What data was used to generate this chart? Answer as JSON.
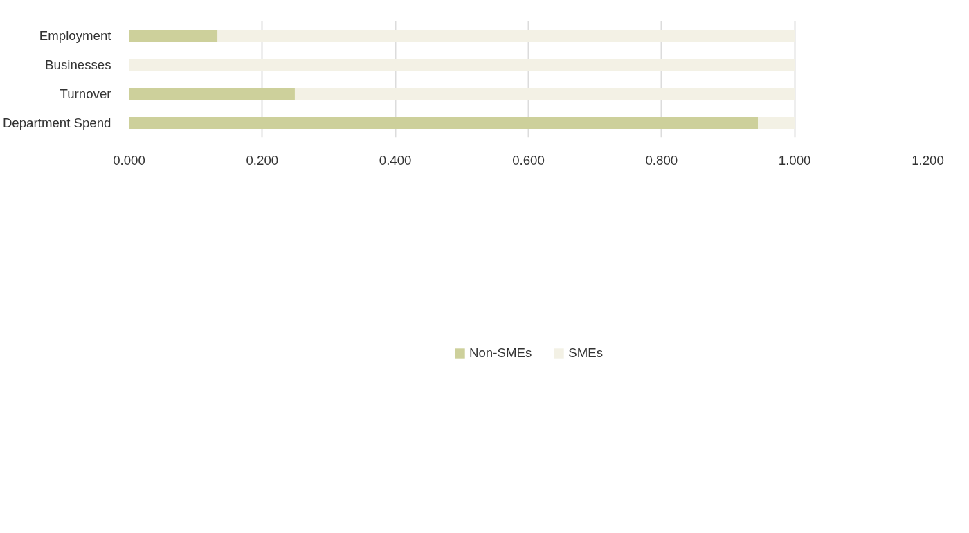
{
  "chart_data": {
    "type": "bar",
    "orientation": "horizontal",
    "stacked": true,
    "categories": [
      "Employment",
      "Businesses",
      "Turnover",
      "Department Spend"
    ],
    "series": [
      {
        "name": "Non-SMEs",
        "color": "#cdd09b",
        "values": [
          0.133,
          0.0,
          0.249,
          0.945
        ]
      },
      {
        "name": "SMEs",
        "color": "#f3f1e5",
        "values": [
          0.867,
          1.0,
          0.751,
          0.055
        ]
      }
    ],
    "xlim": [
      0,
      1.2
    ],
    "xticks": [
      {
        "value": 0,
        "label": "0.000"
      },
      {
        "value": 0.2,
        "label": "0.200"
      },
      {
        "value": 0.4,
        "label": "0.400"
      },
      {
        "value": 0.6,
        "label": "0.600"
      },
      {
        "value": 0.8,
        "label": "0.800"
      },
      {
        "value": 1.0,
        "label": "1.000"
      },
      {
        "value": 1.2,
        "label": "1.200"
      }
    ],
    "grid": "x",
    "legend": "bottom"
  }
}
